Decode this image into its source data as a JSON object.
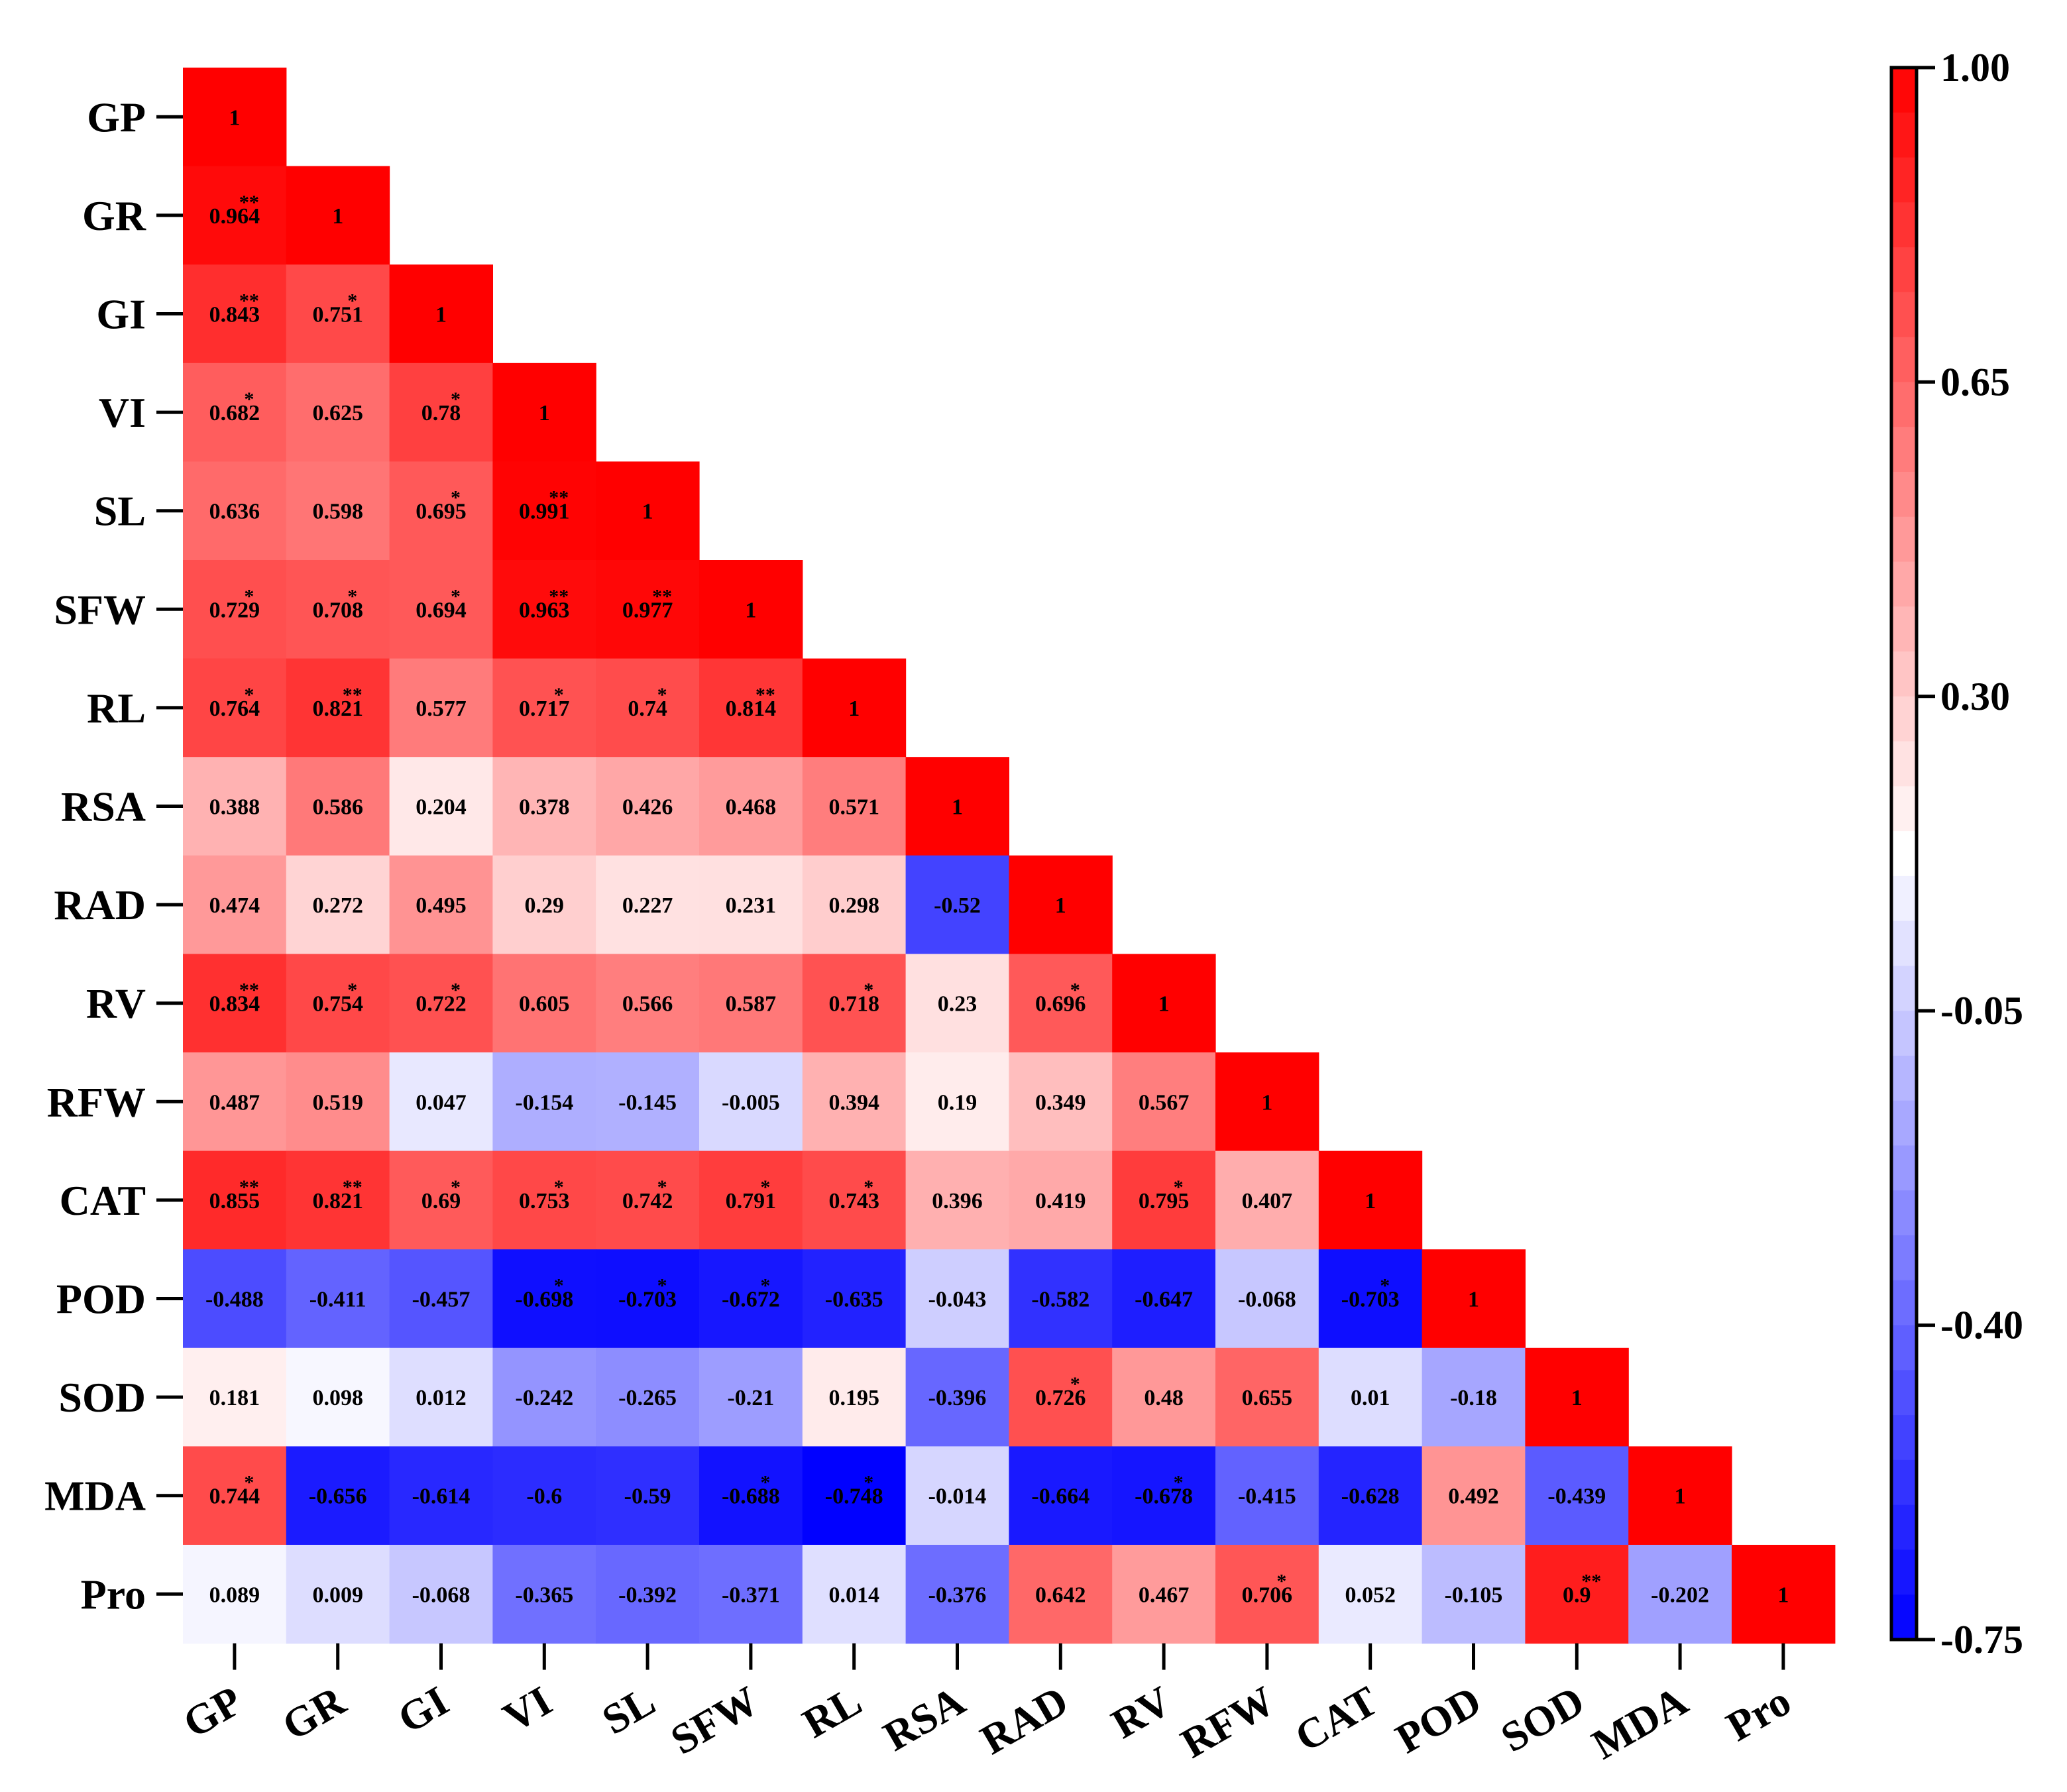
{
  "chart_data": {
    "type": "heatmap",
    "title": "",
    "variables": [
      "GP",
      "GR",
      "GI",
      "VI",
      "SL",
      "SFW",
      "RL",
      "RSA",
      "RAD",
      "RV",
      "RFW",
      "CAT",
      "POD",
      "SOD",
      "MDA",
      "Pro"
    ],
    "matrix": [
      [
        "1"
      ],
      [
        "0.964",
        "1"
      ],
      [
        "0.843",
        "0.751",
        "1"
      ],
      [
        "0.682",
        "0.625",
        "0.78",
        "1"
      ],
      [
        "0.636",
        "0.598",
        "0.695",
        "0.991",
        "1"
      ],
      [
        "0.729",
        "0.708",
        "0.694",
        "0.963",
        "0.977",
        "1"
      ],
      [
        "0.764",
        "0.821",
        "0.577",
        "0.717",
        "0.74",
        "0.814",
        "1"
      ],
      [
        "0.388",
        "0.586",
        "0.204",
        "0.378",
        "0.426",
        "0.468",
        "0.571",
        "1"
      ],
      [
        "0.474",
        "0.272",
        "0.495",
        "0.29",
        "0.227",
        "0.231",
        "0.298",
        "-0.52",
        "1"
      ],
      [
        "0.834",
        "0.754",
        "0.722",
        "0.605",
        "0.566",
        "0.587",
        "0.718",
        "0.23",
        "0.696",
        "1"
      ],
      [
        "0.487",
        "0.519",
        "0.047",
        "-0.154",
        "-0.145",
        "-0.005",
        "0.394",
        "0.19",
        "0.349",
        "0.567",
        "1"
      ],
      [
        "0.855",
        "0.821",
        "0.69",
        "0.753",
        "0.742",
        "0.791",
        "0.743",
        "0.396",
        "0.419",
        "0.795",
        "0.407",
        "1"
      ],
      [
        "-0.488",
        "-0.411",
        "-0.457",
        "-0.698",
        "-0.703",
        "-0.672",
        "-0.635",
        "-0.043",
        "-0.582",
        "-0.647",
        "-0.068",
        "-0.703",
        "1"
      ],
      [
        "0.181",
        "0.098",
        "0.012",
        "-0.242",
        "-0.265",
        "-0.21",
        "0.195",
        "-0.396",
        "0.726",
        "0.48",
        "0.655",
        "0.01",
        "-0.18",
        "1"
      ],
      [
        "0.744",
        "-0.656",
        "-0.614",
        "-0.6",
        "-0.59",
        "-0.688",
        "-0.748",
        "-0.014",
        "-0.664",
        "-0.678",
        "-0.415",
        "-0.628",
        "0.492",
        "-0.439",
        "1"
      ],
      [
        "0.089",
        "0.009",
        "-0.068",
        "-0.365",
        "-0.392",
        "-0.371",
        "0.014",
        "-0.376",
        "0.642",
        "0.467",
        "0.706",
        "0.052",
        "-0.105",
        "0.9",
        "-0.202",
        "1"
      ]
    ],
    "significance": [
      [
        ""
      ],
      [
        "**",
        ""
      ],
      [
        "**",
        "*",
        ""
      ],
      [
        "*",
        "",
        "*",
        ""
      ],
      [
        "",
        "",
        "*",
        "**",
        ""
      ],
      [
        "*",
        "*",
        "*",
        "**",
        "**",
        ""
      ],
      [
        "*",
        "**",
        "",
        "*",
        "*",
        "**",
        ""
      ],
      [
        "",
        "",
        "",
        "",
        "",
        "",
        "",
        ""
      ],
      [
        "",
        "",
        "",
        "",
        "",
        "",
        "",
        "",
        ""
      ],
      [
        "**",
        "*",
        "*",
        "",
        "",
        "",
        "*",
        "",
        "*",
        ""
      ],
      [
        "",
        "",
        "",
        "",
        "",
        "",
        "",
        "",
        "",
        "",
        ""
      ],
      [
        "**",
        "**",
        "*",
        "*",
        "*",
        "*",
        "*",
        "",
        "",
        "*",
        "",
        ""
      ],
      [
        "",
        "",
        "",
        "*",
        "*",
        "*",
        "",
        "",
        "",
        "",
        "",
        "*",
        ""
      ],
      [
        "",
        "",
        "",
        "",
        "",
        "",
        "",
        "",
        "*",
        "",
        "",
        "",
        "",
        ""
      ],
      [
        "*",
        "",
        "",
        "",
        "",
        "*",
        "*",
        "",
        "",
        "*",
        "",
        "",
        "",
        "",
        ""
      ],
      [
        "",
        "",
        "",
        "",
        "",
        "",
        "",
        "",
        "",
        "",
        "*",
        "",
        "",
        "**",
        "",
        ""
      ]
    ],
    "colorbar": {
      "min": -0.75,
      "max": 1.0,
      "ticks": [
        "1.00",
        "0.65",
        "0.30",
        "-0.05",
        "-0.40",
        "-0.75"
      ],
      "colors": {
        "low": "#0000ff",
        "mid": "#ffffff",
        "high": "#ff0000"
      },
      "mid_value": 0.125,
      "steps": 35
    }
  }
}
